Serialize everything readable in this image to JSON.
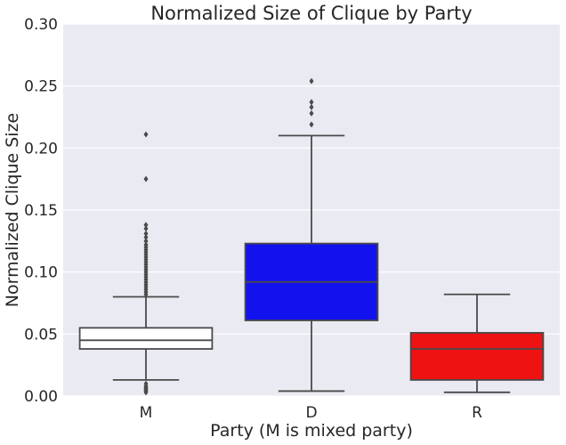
{
  "chart_data": {
    "type": "box",
    "title": "Normalized Size of Clique by Party",
    "xlabel": "Party (M is mixed party)",
    "ylabel": "Normalized Clique Size",
    "ylim": [
      0.0,
      0.3
    ],
    "yticks": [
      "0.00",
      "0.05",
      "0.10",
      "0.15",
      "0.20",
      "0.25",
      "0.30"
    ],
    "grid": true,
    "categories": [
      "M",
      "D",
      "R"
    ],
    "boxes": [
      {
        "category": "M",
        "color": "#ffffff",
        "whisker_low": 0.013,
        "q1": 0.038,
        "median": 0.045,
        "q3": 0.055,
        "whisker_high": 0.08,
        "outliers": [
          0.211,
          0.175,
          0.138,
          0.135,
          0.131,
          0.128,
          0.125,
          0.122,
          0.12,
          0.118,
          0.116,
          0.114,
          0.112,
          0.11,
          0.108,
          0.106,
          0.104,
          0.102,
          0.1,
          0.098,
          0.096,
          0.094,
          0.092,
          0.09,
          0.088,
          0.086,
          0.084,
          0.082,
          0.01,
          0.008,
          0.007,
          0.006,
          0.005,
          0.004,
          0.003
        ]
      },
      {
        "category": "D",
        "color": "#1212ee",
        "whisker_low": 0.004,
        "q1": 0.061,
        "median": 0.092,
        "q3": 0.123,
        "whisker_high": 0.21,
        "outliers": [
          0.254,
          0.237,
          0.233,
          0.228,
          0.219
        ]
      },
      {
        "category": "R",
        "color": "#ee1212",
        "whisker_low": 0.003,
        "q1": 0.013,
        "median": 0.038,
        "q3": 0.051,
        "whisker_high": 0.082,
        "outliers": []
      }
    ]
  }
}
